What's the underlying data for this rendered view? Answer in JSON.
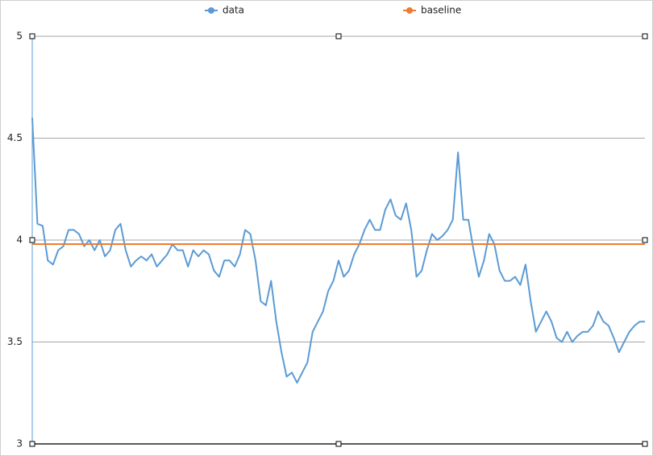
{
  "chart_data": {
    "type": "line",
    "series": [
      {
        "name": "data",
        "color": "#5b9bd5",
        "values": [
          4.6,
          4.08,
          4.07,
          3.9,
          3.88,
          3.95,
          3.97,
          4.05,
          4.05,
          4.03,
          3.97,
          4.0,
          3.95,
          4.0,
          3.92,
          3.95,
          4.05,
          4.08,
          3.95,
          3.87,
          3.9,
          3.92,
          3.9,
          3.93,
          3.87,
          3.9,
          3.93,
          3.98,
          3.95,
          3.95,
          3.87,
          3.95,
          3.92,
          3.95,
          3.93,
          3.85,
          3.82,
          3.9,
          3.9,
          3.87,
          3.93,
          4.05,
          4.03,
          3.9,
          3.7,
          3.68,
          3.8,
          3.6,
          3.45,
          3.33,
          3.35,
          3.3,
          3.35,
          3.4,
          3.55,
          3.6,
          3.65,
          3.75,
          3.8,
          3.9,
          3.82,
          3.85,
          3.93,
          3.98,
          4.05,
          4.1,
          4.05,
          4.05,
          4.15,
          4.2,
          4.12,
          4.1,
          4.18,
          4.05,
          3.82,
          3.85,
          3.95,
          4.03,
          4.0,
          4.02,
          4.05,
          4.1,
          4.43,
          4.1,
          4.1,
          3.95,
          3.82,
          3.9,
          4.03,
          3.98,
          3.85,
          3.8,
          3.8,
          3.82,
          3.78,
          3.88,
          3.7,
          3.55,
          3.6,
          3.65,
          3.6,
          3.52,
          3.5,
          3.55,
          3.5,
          3.53,
          3.55,
          3.55,
          3.58,
          3.65,
          3.6,
          3.58,
          3.52,
          3.45,
          3.5,
          3.55,
          3.58,
          3.6,
          3.6
        ]
      },
      {
        "name": "baseline",
        "color": "#ed7d31",
        "values": [
          3.98,
          3.98,
          3.98,
          3.98,
          3.98,
          3.98,
          3.98,
          3.98,
          3.98,
          3.98,
          3.98,
          3.98,
          3.98,
          3.98,
          3.98,
          3.98,
          3.98,
          3.98,
          3.98,
          3.98,
          3.98,
          3.98,
          3.98,
          3.98,
          3.98,
          3.98,
          3.98,
          3.98,
          3.98,
          3.98,
          3.98,
          3.98,
          3.98,
          3.98,
          3.98,
          3.98,
          3.98,
          3.98,
          3.98,
          3.98,
          3.98,
          3.98,
          3.98,
          3.98,
          3.98,
          3.98,
          3.98,
          3.98,
          3.98,
          3.98,
          3.98,
          3.98,
          3.98,
          3.98,
          3.98,
          3.98,
          3.98,
          3.98,
          3.98,
          3.98,
          3.98,
          3.98,
          3.98,
          3.98,
          3.98,
          3.98,
          3.98,
          3.98,
          3.98,
          3.98,
          3.98,
          3.98,
          3.98,
          3.98,
          3.98,
          3.98,
          3.98,
          3.98,
          3.98,
          3.98,
          3.98,
          3.98,
          3.98,
          3.98,
          3.98,
          3.98,
          3.98,
          3.98,
          3.98,
          3.98,
          3.98,
          3.98,
          3.98,
          3.98,
          3.98,
          3.98,
          3.98,
          3.98,
          3.98,
          3.98,
          3.98,
          3.98,
          3.98,
          3.98,
          3.98,
          3.98,
          3.98,
          3.98,
          3.98,
          3.98,
          3.98,
          3.98,
          3.98,
          3.98,
          3.98,
          3.98,
          3.98,
          3.98,
          3.98
        ]
      }
    ],
    "ylim": [
      3,
      5
    ],
    "yticks": [
      3,
      3.5,
      4,
      4.5,
      5
    ],
    "grid": true,
    "legend": "top"
  }
}
